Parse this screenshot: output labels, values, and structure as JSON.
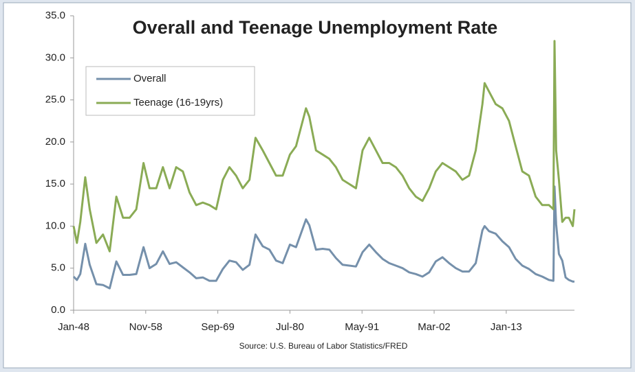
{
  "chart_data": {
    "type": "line",
    "title": "Overall and Teenage Unemployment Rate",
    "source": "Source: U.S. Bureau of Labor Statistics/FRED",
    "x": [
      "1948-01",
      "1948-07",
      "1949-01",
      "1949-10",
      "1950-06",
      "1951-06",
      "1952-06",
      "1953-06",
      "1954-06",
      "1955-06",
      "1956-06",
      "1957-06",
      "1958-07",
      "1959-06",
      "1960-06",
      "1961-06",
      "1962-06",
      "1963-06",
      "1964-06",
      "1965-06",
      "1966-06",
      "1967-06",
      "1968-06",
      "1969-06",
      "1970-06",
      "1971-06",
      "1972-06",
      "1973-06",
      "1974-06",
      "1975-05",
      "1976-06",
      "1977-06",
      "1978-06",
      "1979-06",
      "1980-07",
      "1981-06",
      "1982-12",
      "1983-06",
      "1984-06",
      "1985-06",
      "1986-06",
      "1987-06",
      "1988-06",
      "1989-06",
      "1990-06",
      "1991-06",
      "1992-06",
      "1993-06",
      "1994-06",
      "1995-06",
      "1996-06",
      "1997-06",
      "1998-06",
      "1999-06",
      "2000-06",
      "2001-06",
      "2002-06",
      "2003-06",
      "2004-06",
      "2005-06",
      "2006-06",
      "2007-06",
      "2008-06",
      "2009-06",
      "2009-10",
      "2010-06",
      "2011-06",
      "2012-06",
      "2013-06",
      "2014-06",
      "2015-06",
      "2016-06",
      "2017-06",
      "2018-06",
      "2019-06",
      "2020-02",
      "2020-04",
      "2020-07",
      "2020-12",
      "2021-06",
      "2021-12",
      "2022-06",
      "2023-01",
      "2023-04"
    ],
    "series": [
      {
        "name": "Overall",
        "color": "#7590ab",
        "values": [
          4.0,
          3.6,
          4.3,
          7.9,
          5.4,
          3.1,
          3.0,
          2.6,
          5.8,
          4.2,
          4.2,
          4.3,
          7.5,
          5.0,
          5.5,
          7.0,
          5.5,
          5.7,
          5.1,
          4.5,
          3.8,
          3.9,
          3.5,
          3.5,
          4.9,
          5.9,
          5.7,
          4.8,
          5.4,
          9.0,
          7.6,
          7.2,
          5.9,
          5.6,
          7.8,
          7.5,
          10.8,
          10.1,
          7.2,
          7.3,
          7.2,
          6.2,
          5.4,
          5.3,
          5.2,
          6.9,
          7.8,
          6.9,
          6.1,
          5.6,
          5.3,
          5.0,
          4.5,
          4.3,
          4.0,
          4.5,
          5.8,
          6.3,
          5.6,
          5.0,
          4.6,
          4.6,
          5.6,
          9.5,
          10.0,
          9.4,
          9.1,
          8.2,
          7.5,
          6.1,
          5.3,
          4.9,
          4.3,
          4.0,
          3.6,
          3.5,
          14.7,
          10.2,
          6.7,
          5.9,
          3.9,
          3.6,
          3.4,
          3.4
        ]
      },
      {
        "name": "Teenage (16-19yrs)",
        "color": "#8aab55",
        "values": [
          10.0,
          8.0,
          10.5,
          15.8,
          12.0,
          8.0,
          9.0,
          7.0,
          13.5,
          11.0,
          11.0,
          12.0,
          17.5,
          14.5,
          14.5,
          17.0,
          14.5,
          17.0,
          16.5,
          14.0,
          12.5,
          12.8,
          12.5,
          12.0,
          15.5,
          17.0,
          16.0,
          14.5,
          15.5,
          20.5,
          19.0,
          17.5,
          16.0,
          16.0,
          18.5,
          19.5,
          24.0,
          23.0,
          19.0,
          18.5,
          18.0,
          17.0,
          15.5,
          15.0,
          14.5,
          19.0,
          20.5,
          19.0,
          17.5,
          17.5,
          17.0,
          16.0,
          14.5,
          13.5,
          13.0,
          14.5,
          16.5,
          17.5,
          17.0,
          16.5,
          15.5,
          16.0,
          19.0,
          24.5,
          27.0,
          26.0,
          24.5,
          24.0,
          22.5,
          19.5,
          16.5,
          16.0,
          13.5,
          12.5,
          12.5,
          12.0,
          32.0,
          19.0,
          15.5,
          10.5,
          11.0,
          11.0,
          10.0,
          12.0
        ]
      }
    ],
    "xlim": [
      "1948-01",
      "2023-04"
    ],
    "xticks": [
      {
        "value": "1948-01",
        "label": "Jan-48"
      },
      {
        "value": "1958-11",
        "label": "Nov-58"
      },
      {
        "value": "1969-09",
        "label": "Sep-69"
      },
      {
        "value": "1980-07",
        "label": "Jul-80"
      },
      {
        "value": "1991-05",
        "label": "May-91"
      },
      {
        "value": "2002-03",
        "label": "Mar-02"
      },
      {
        "value": "2013-01",
        "label": "Jan-13"
      }
    ],
    "ylim": [
      0,
      35
    ],
    "yticks": [
      {
        "value": 0,
        "label": "0.0"
      },
      {
        "value": 5,
        "label": "5.0"
      },
      {
        "value": 10,
        "label": "10.0"
      },
      {
        "value": 15,
        "label": "15.0"
      },
      {
        "value": 20,
        "label": "20.0"
      },
      {
        "value": 25,
        "label": "25.0"
      },
      {
        "value": 30,
        "label": "30.0"
      },
      {
        "value": 35,
        "label": "35.0"
      }
    ],
    "grid": false
  }
}
